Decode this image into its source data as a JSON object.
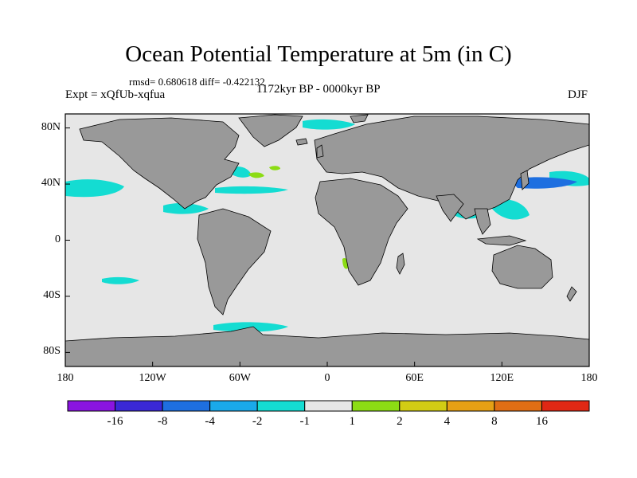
{
  "title": "Ocean Potential Temperature at 5m (in C)",
  "stats": "rmsd= 0.680618 diff= -0.422132",
  "experiment": "Expt = xQfUb-xqfua",
  "period": "1172kyr BP - 0000kyr BP",
  "season": "DJF",
  "colors": {
    "land": "#999999",
    "ocean_neutral": "#e6e6e6",
    "coast": "#000000"
  },
  "lat_labels": [
    "80N",
    "40N",
    "0",
    "40S",
    "80S"
  ],
  "lon_labels": [
    "180",
    "120W",
    "60W",
    "0",
    "60E",
    "120E",
    "180"
  ],
  "colorbar": {
    "labels": [
      "-16",
      "-8",
      "-4",
      "-2",
      "-1",
      "1",
      "2",
      "4",
      "8",
      "16"
    ],
    "bins": [
      {
        "color": "#8a14e0"
      },
      {
        "color": "#3a28d6"
      },
      {
        "color": "#1e6fe0"
      },
      {
        "color": "#1aa9ea"
      },
      {
        "color": "#14dcd2"
      },
      {
        "color": "#e6e6e6"
      },
      {
        "color": "#8cdc14"
      },
      {
        "color": "#d2cc14"
      },
      {
        "color": "#e6a014"
      },
      {
        "color": "#e06e14"
      },
      {
        "color": "#e02814"
      }
    ]
  },
  "chart_data": {
    "type": "map",
    "projection": "cylindrical equidistant",
    "lat_range": [
      -90,
      90
    ],
    "lon_range": [
      -180,
      180
    ],
    "variable": "Ocean Potential Temperature at 5m difference",
    "units": "C",
    "contour_levels": [
      -16,
      -8,
      -4,
      -2,
      -1,
      1,
      2,
      4,
      8,
      16
    ],
    "anomaly_regions": [
      {
        "region": "North Pacific subtropical gyre",
        "level": "-2"
      },
      {
        "region": "Kuroshio extension / NW Pacific",
        "level": "-4"
      },
      {
        "region": "Central North Pacific",
        "level": "-2"
      },
      {
        "region": "Gulf Stream / NW Atlantic",
        "level": "-2"
      },
      {
        "region": "North Atlantic mid-latitudes",
        "level": "1"
      },
      {
        "region": "Tropical Atlantic / Caribbean",
        "level": "-2"
      },
      {
        "region": "South Pacific off South America",
        "level": "-2"
      },
      {
        "region": "Southern Ocean near Drake Passage",
        "level": "-2"
      },
      {
        "region": "Benguela upwelling",
        "level": "1"
      },
      {
        "region": "Arabian Sea / Bay of Bengal",
        "level": "-2"
      },
      {
        "region": "Nordic Seas",
        "level": "-2"
      }
    ]
  }
}
